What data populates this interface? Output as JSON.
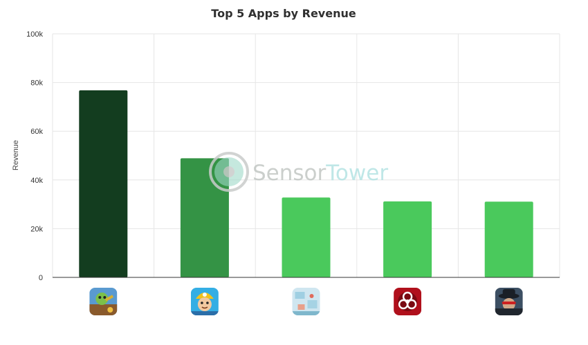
{
  "chart_data": {
    "type": "bar",
    "title": "Top 5 Apps by Revenue",
    "xlabel": "",
    "ylabel": "Revenue",
    "ylim": [
      0,
      100000
    ],
    "yticks": [
      {
        "value": 0,
        "label": "0"
      },
      {
        "value": 20000,
        "label": "20k"
      },
      {
        "value": 40000,
        "label": "40k"
      },
      {
        "value": 60000,
        "label": "60k"
      },
      {
        "value": 80000,
        "label": "80k"
      },
      {
        "value": 100000,
        "label": "100k"
      }
    ],
    "grid": true,
    "values": [
      76800,
      48900,
      32800,
      31200,
      31100
    ],
    "bar_colors": [
      "#133d1f",
      "#349345",
      "#4ac95c",
      "#4ac95c",
      "#4ac95c"
    ],
    "app_icons": [
      "goblin-game-app-icon",
      "miner-character-app-icon",
      "snowy-map-app-icon",
      "biohazard-app-icon",
      "detective-app-icon"
    ]
  },
  "watermark": {
    "part1": "Sensor",
    "part2": "Tower",
    "colors": {
      "part1": "#c2c7c4",
      "part2": "#b5e3e3",
      "logo_ring": "#c9cccb",
      "logo_core": "#9ed8c9"
    }
  }
}
